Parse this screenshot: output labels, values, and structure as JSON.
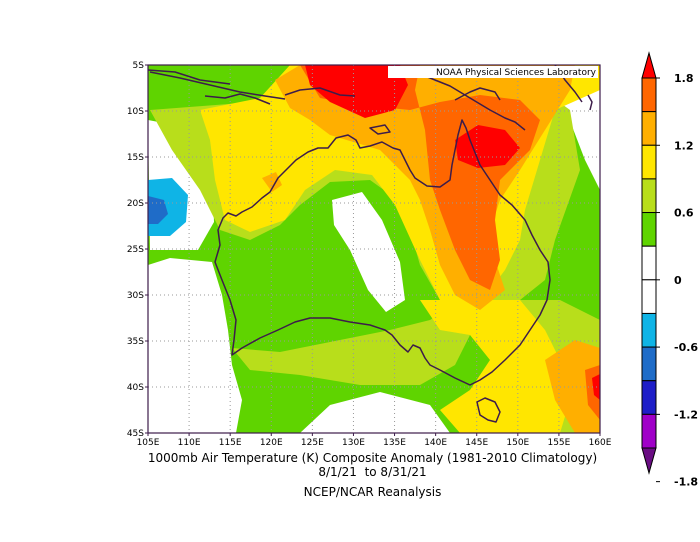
{
  "map": {
    "credit": "NOAA Physical Sciences Laboratory",
    "lat_labels": [
      "5S",
      "10S",
      "15S",
      "20S",
      "25S",
      "30S",
      "35S",
      "40S",
      "45S"
    ],
    "lon_labels": [
      "105E",
      "110E",
      "115E",
      "120E",
      "125E",
      "130E",
      "135E",
      "140E",
      "145E",
      "150E",
      "155E",
      "160E"
    ]
  },
  "colorbar": {
    "labels": [
      "1.8",
      "1.2",
      "0.6",
      "0",
      "-0.6",
      "-1.2",
      "-1.8"
    ],
    "colors": [
      "#6a0d83",
      "#a000c8",
      "#1e1ec8",
      "#1f6cc8",
      "#0fb4e6",
      "#ffffff",
      "#ffffff",
      "#5fd400",
      "#b8de1b",
      "#ffe600",
      "#ffaf00",
      "#ff6600",
      "#ff0000"
    ]
  },
  "caption": {
    "line1": "1000mb Air Temperature (K) Composite Anomaly (1981-2010 Climatology)",
    "line2": "8/1/21  to 8/31/21",
    "line3": "NCEP/NCAR Reanalysis"
  }
}
